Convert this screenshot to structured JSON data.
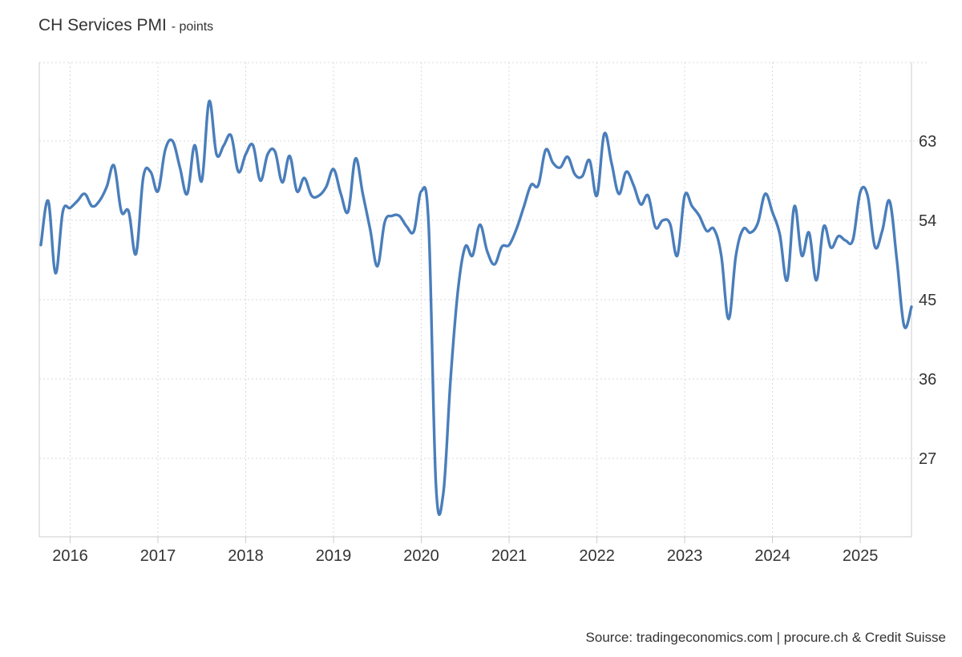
{
  "chart_data": {
    "type": "line",
    "title": "CH Services PMI",
    "unit": "points",
    "source": "Source: tradingeconomics.com | procure.ch & Credit Suisse",
    "series": [
      {
        "color": "#4a7ebb",
        "points": [
          [
            "2015-09",
            51.2
          ],
          [
            "2015-10",
            56.2
          ],
          [
            "2015-11",
            48.0
          ],
          [
            "2015-12",
            55.0
          ],
          [
            "2016-01",
            55.4
          ],
          [
            "2016-02",
            56.2
          ],
          [
            "2016-03",
            57.0
          ],
          [
            "2016-04",
            55.6
          ],
          [
            "2016-05",
            56.2
          ],
          [
            "2016-06",
            57.8
          ],
          [
            "2016-07",
            60.2
          ],
          [
            "2016-08",
            55.0
          ],
          [
            "2016-09",
            55.0
          ],
          [
            "2016-10",
            50.2
          ],
          [
            "2016-11",
            58.9
          ],
          [
            "2016-12",
            59.5
          ],
          [
            "2017-01",
            57.3
          ],
          [
            "2017-02",
            62.0
          ],
          [
            "2017-03",
            63.0
          ],
          [
            "2017-04",
            60.0
          ],
          [
            "2017-05",
            57.0
          ],
          [
            "2017-06",
            62.5
          ],
          [
            "2017-07",
            58.5
          ],
          [
            "2017-08",
            67.5
          ],
          [
            "2017-09",
            61.5
          ],
          [
            "2017-10",
            62.5
          ],
          [
            "2017-11",
            63.6
          ],
          [
            "2017-12",
            59.5
          ],
          [
            "2018-01",
            61.5
          ],
          [
            "2018-02",
            62.5
          ],
          [
            "2018-03",
            58.5
          ],
          [
            "2018-04",
            61.5
          ],
          [
            "2018-05",
            61.8
          ],
          [
            "2018-06",
            58.3
          ],
          [
            "2018-07",
            61.3
          ],
          [
            "2018-08",
            57.3
          ],
          [
            "2018-09",
            58.8
          ],
          [
            "2018-10",
            56.8
          ],
          [
            "2018-11",
            56.8
          ],
          [
            "2018-12",
            57.8
          ],
          [
            "2019-01",
            59.8
          ],
          [
            "2019-02",
            57.0
          ],
          [
            "2019-03",
            55.0
          ],
          [
            "2019-04",
            61.0
          ],
          [
            "2019-05",
            57.0
          ],
          [
            "2019-06",
            53.0
          ],
          [
            "2019-07",
            48.8
          ],
          [
            "2019-08",
            53.8
          ],
          [
            "2019-09",
            54.5
          ],
          [
            "2019-10",
            54.5
          ],
          [
            "2019-11",
            53.3
          ],
          [
            "2019-12",
            52.8
          ],
          [
            "2020-01",
            57.3
          ],
          [
            "2020-02",
            53.5
          ],
          [
            "2020-03",
            24.0
          ],
          [
            "2020-04",
            23.0
          ],
          [
            "2020-05",
            36.0
          ],
          [
            "2020-06",
            46.0
          ],
          [
            "2020-07",
            51.0
          ],
          [
            "2020-08",
            50.0
          ],
          [
            "2020-09",
            53.5
          ],
          [
            "2020-10",
            50.5
          ],
          [
            "2020-11",
            49.0
          ],
          [
            "2020-12",
            51.0
          ],
          [
            "2021-01",
            51.2
          ],
          [
            "2021-02",
            53.0
          ],
          [
            "2021-03",
            55.5
          ],
          [
            "2021-04",
            58.0
          ],
          [
            "2021-05",
            58.0
          ],
          [
            "2021-06",
            62.0
          ],
          [
            "2021-07",
            60.5
          ],
          [
            "2021-08",
            60.0
          ],
          [
            "2021-09",
            61.2
          ],
          [
            "2021-10",
            59.2
          ],
          [
            "2021-11",
            59.0
          ],
          [
            "2021-12",
            60.8
          ],
          [
            "2022-01",
            56.8
          ],
          [
            "2022-02",
            63.8
          ],
          [
            "2022-03",
            60.5
          ],
          [
            "2022-04",
            57.0
          ],
          [
            "2022-05",
            59.5
          ],
          [
            "2022-06",
            58.0
          ],
          [
            "2022-07",
            55.8
          ],
          [
            "2022-08",
            56.8
          ],
          [
            "2022-09",
            53.2
          ],
          [
            "2022-10",
            54.0
          ],
          [
            "2022-11",
            53.6
          ],
          [
            "2022-12",
            50.0
          ],
          [
            "2023-01",
            56.8
          ],
          [
            "2023-02",
            55.6
          ],
          [
            "2023-03",
            54.5
          ],
          [
            "2023-04",
            52.8
          ],
          [
            "2023-05",
            53.0
          ],
          [
            "2023-06",
            50.0
          ],
          [
            "2023-07",
            42.8
          ],
          [
            "2023-08",
            50.0
          ],
          [
            "2023-09",
            53.0
          ],
          [
            "2023-10",
            52.6
          ],
          [
            "2023-11",
            53.7
          ],
          [
            "2023-12",
            57.0
          ],
          [
            "2024-01",
            54.9
          ],
          [
            "2024-02",
            52.4
          ],
          [
            "2024-03",
            47.2
          ],
          [
            "2024-04",
            55.6
          ],
          [
            "2024-05",
            50.0
          ],
          [
            "2024-06",
            52.6
          ],
          [
            "2024-07",
            47.2
          ],
          [
            "2024-08",
            53.3
          ],
          [
            "2024-09",
            50.9
          ],
          [
            "2024-10",
            52.2
          ],
          [
            "2024-11",
            51.7
          ],
          [
            "2024-12",
            51.8
          ],
          [
            "2025-01",
            57.2
          ],
          [
            "2025-02",
            56.8
          ],
          [
            "2025-03",
            51.0
          ],
          [
            "2025-04",
            52.8
          ],
          [
            "2025-05",
            56.2
          ],
          [
            "2025-06",
            49.5
          ],
          [
            "2025-07",
            42.0
          ],
          [
            "2025-08",
            44.2
          ]
        ]
      }
    ],
    "y_ticks": [
      27,
      36,
      45,
      54,
      63
    ],
    "ylim": [
      18.1,
      71.9
    ],
    "x_ticks": [
      "2016",
      "2017",
      "2018",
      "2019",
      "2020",
      "2021",
      "2022",
      "2023",
      "2024",
      "2025"
    ],
    "xlim": [
      "2015-09",
      "2025-08"
    ],
    "grid": true,
    "y_axis_side": "right"
  }
}
